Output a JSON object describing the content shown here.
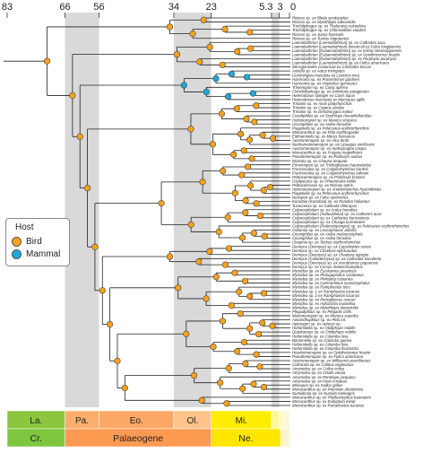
{
  "timescale": {
    "ticks": [
      "83",
      "66",
      "56",
      "34",
      "23",
      "5.3",
      "3",
      "0"
    ],
    "periods_row1": [
      {
        "label": "La.",
        "color": "#8CC63F"
      },
      {
        "label": "Pa.",
        "color": "#FDAE6B"
      },
      {
        "label": "Eo.",
        "color": "#FDA865"
      },
      {
        "label": "Ol.",
        "color": "#FDC38A"
      },
      {
        "label": "Mi.",
        "color": "#FFED00"
      },
      {
        "label": "",
        "color": "#FFF799"
      },
      {
        "label": "",
        "color": "#FFFBC8"
      },
      {
        "label": "",
        "color": "#FDF5DC"
      }
    ],
    "periods_row2": [
      {
        "label": "Cr.",
        "color": "#7FC63F"
      },
      {
        "label": "Palaeogene",
        "color": "#FD9A52"
      },
      {
        "label": "Ne.",
        "color": "#FFE600"
      },
      {
        "label": "",
        "color": "#FDF3C8"
      }
    ],
    "shading_color": "#d9d9d9"
  },
  "legend": {
    "title": "Host",
    "items": [
      {
        "label": "Bird",
        "color": "#F7A21B"
      },
      {
        "label": "Mammal",
        "color": "#1FA8D8"
      }
    ]
  },
  "tips": [
    "Ricinus sp. ex Bleda syndactylus",
    "Ricinus sp. ex Myiothlypis luteoviridis",
    "Trochiliphagus sp. ex Thalurania columbica",
    "Trochiliphagus sp. ex Chlorostilbon colubris",
    "Ricinus sp. ex Junco hyemalis",
    "Ricinus sp. ex Turdus migratorius",
    "Laemobothrion (Laemobothrion) sp. ex Cathartes aura",
    "Laemobothrion (Laemobothrion) tinnunculi ex Falco longipennis",
    "Laemobothrion (Eulaemobothrion) sp. ex Ictinia mississippiensis",
    "Laemobothrion (Eulaemobothrion) sp. ex Opisthocomus hoazin",
    "Laemobothrion (Eulaemobothrion) sp. ex Porphyrio porphyrio",
    "Laemobothrion (Laemobothrion) sp. ex Fulica americana",
    "Microgoniodes costaricae ex Cinclodes fuscus",
    "Aotiella sp. ex Aotus trivirgatus",
    "Cummingsia maculata ex Lestoros inca",
    "Harrisonia sp. ex Procechimys gardneri",
    "Harrisonia sp. ex Hoplomys gymnurus",
    "Trimenopon sp. ex Cavia aperea",
    "Chinchillophaga sp. ex Dolichotis patagonum",
    "Heterodoxus spiniger ex Canis lupus",
    "Heterodoxus macropus ex Macropus agilis",
    "Trinoton sp. ex Anas platyrhynchos",
    "Trinoton sp. ex Cygnus atratus",
    "Trinoton sp. ex Dendrocygna eytoni",
    "Cuculiphilus sp. ex Scythrops novaehollandiae",
    "Holomenopon sp. ex Mareca strepera",
    "Ciconiphilus sp. ex Ardea herodias",
    "Piagetiella sp. ex Pelecanus erythrorhynchos",
    "Menacanthus sp. ex Pitta erythrogaster",
    "Eidmanniella sp. ex Morus bassanus",
    "Austromenopon sp. ex Alca torda",
    "Neohamatomenopon sp. ex Lipaugus vociferans",
    "Austromenopon sp. ex Hydroprogne caspia",
    "Menacanthus sp. ex Fregata magnificens",
    "Pseudomenopon sp. ex Podiceps auritus",
    "Dicteola sp. ex Chauna torquata",
    "Ennemopon sp. ex Trichoglossus haematodus",
    "Franciscoloa sp. ex Calyptorhynchus banksii",
    "Franciscoloa sp. ex Calyptorhynchus lathami",
    "Psittacomenopon sp. ex Psittacula krameri",
    "Oxylipeurus sp. ex Phoeniculus bollei",
    "Psittacobrosus sp. ex Ricinus antris",
    "Heteromenopon sp. ex Anodorhynchus hyacinthinus",
    "Piagetiella sp. ex Pelecanus erythrorhynchos",
    "Nosopon sp. ex Falco sparverius",
    "Kurodaia (Kurodaia) sp. ex Pandion haliaetus",
    "Tuzacoecia sp. ex Gallinula chloropus",
    "Colpocephalum sp. ex Ardea herodias",
    "Colpocephalum (Vulturiphilus) sp. ex Cathartes aura",
    "Colpocephalum sp. ex Cathartes burrovianus",
    "Colpocephalum sp. ex Chunga burmeisteri",
    "Colpocephalum (Pelecanipongus) sp. ex Pelecanus erythrorhynchos",
    "Osbornia sp. ex Leucophaeus atricilla",
    "Ciconiphilus sp. ex Ardea melanocephala",
    "Ciconiphilus sp. ex Ardea herodias",
    "Chapinia sp. ex Tockus erythrorhynchus",
    "Dennyus (Dennyus) sp. ex Cypseloides senex",
    "Dennyus sp. ex Chaetura spinicaudus",
    "Dennyus (Dennyus) sp. ex Chaetura egregia",
    "Dennyus (Collodennyus) sp. ex Collocalia esculenta",
    "Dennyus (Dennyus) sp. ex Aerodramus papuensis",
    "Dennyus sp. ex Corvus melanorhamphos",
    "Myrsidea sp. ex Eurylaimus javanicus",
    "Myrsidea sp. ex Pheugopedius castaneus",
    "Myrsidea sp. ex Philepitta castanea",
    "Myrsidea sp. ex Gymnorhinus cyanocephalus",
    "Myrsidea sp. ex Ramphastos toco",
    "Myrsidea sp. 1 ex Ramphastos tucanus",
    "Myrsidea sp. 2 ex Ramphastos tucanus",
    "Myrsidea sp. ex Pteroglossus aracari",
    "Myrsidea sp. ex Hylocichla mustelina",
    "Myrsidea sp. ex Myiothlypis luteoviridis",
    "Plegadiphilus sp. ex Plegadis chihi",
    "Menomenopon sp. ex Menura superba",
    "Actornithophilus sp. ex Pitta iris",
    "Apterygon sp. ex Apteryx sp.",
    "Hohorstiella sp. ex Otidiphaps nobilis",
    "Quadraceps sp. ex Otidiphaps nobilis",
    "Hohorstiella sp. ex Columba livia",
    "Bonomiella sp. ex Columba guinea",
    "Hohorstiella sp. ex Columba livia",
    "Hohorstiella sp. ex Columba flavirostris",
    "Hoazinimenopon sp. ex Opisthocomus hoazin",
    "Pseudomenopon sp. ex Fulica americana",
    "Austromenopon sp. ex Willisornis poecilinotus",
    "Colinicola sp. ex Colinus virginianus",
    "Amyrsidea sp. ex Colius colius",
    "Amyrsidea sp. ex Ortalis vetula",
    "Amyrsidea sp. ex Penelope jacquacu",
    "Amyrsidea sp. ex Pavo cristatus",
    "Menopon sp. ex Gallus gallus",
    "Menacanthus sp. ex Pternistis ahantensis",
    "Numidicola sp. ex Numida meleagris",
    "Menacanthus sp. ex Phyllastrephus baumanni",
    "Menacanthus sp. ex Eudyptula minor",
    "Menacanthus sp. ex Ramphastos tucanus"
  ]
}
